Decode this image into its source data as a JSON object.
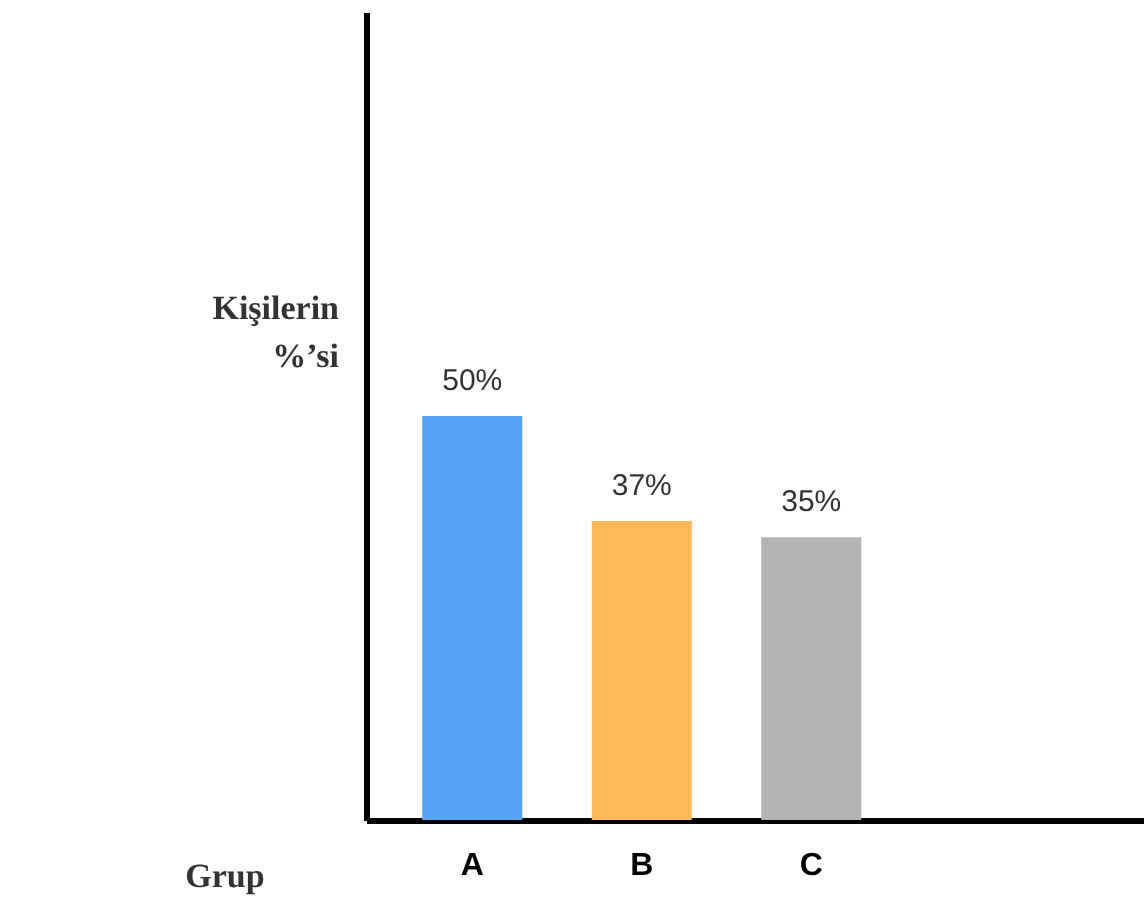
{
  "chart_data": {
    "type": "bar",
    "xlabel": "Grup",
    "ylabel": "Kişilerin\n%’si",
    "categories": [
      "A",
      "B",
      "C"
    ],
    "values": [
      50,
      37,
      35
    ],
    "colors": [
      "#57a3f5",
      "#fdb85a",
      "#b3b3b3"
    ],
    "value_labels": [
      "50%",
      "37%",
      "35%"
    ],
    "ylim": [
      0,
      100
    ],
    "tick_labels": "x"
  }
}
